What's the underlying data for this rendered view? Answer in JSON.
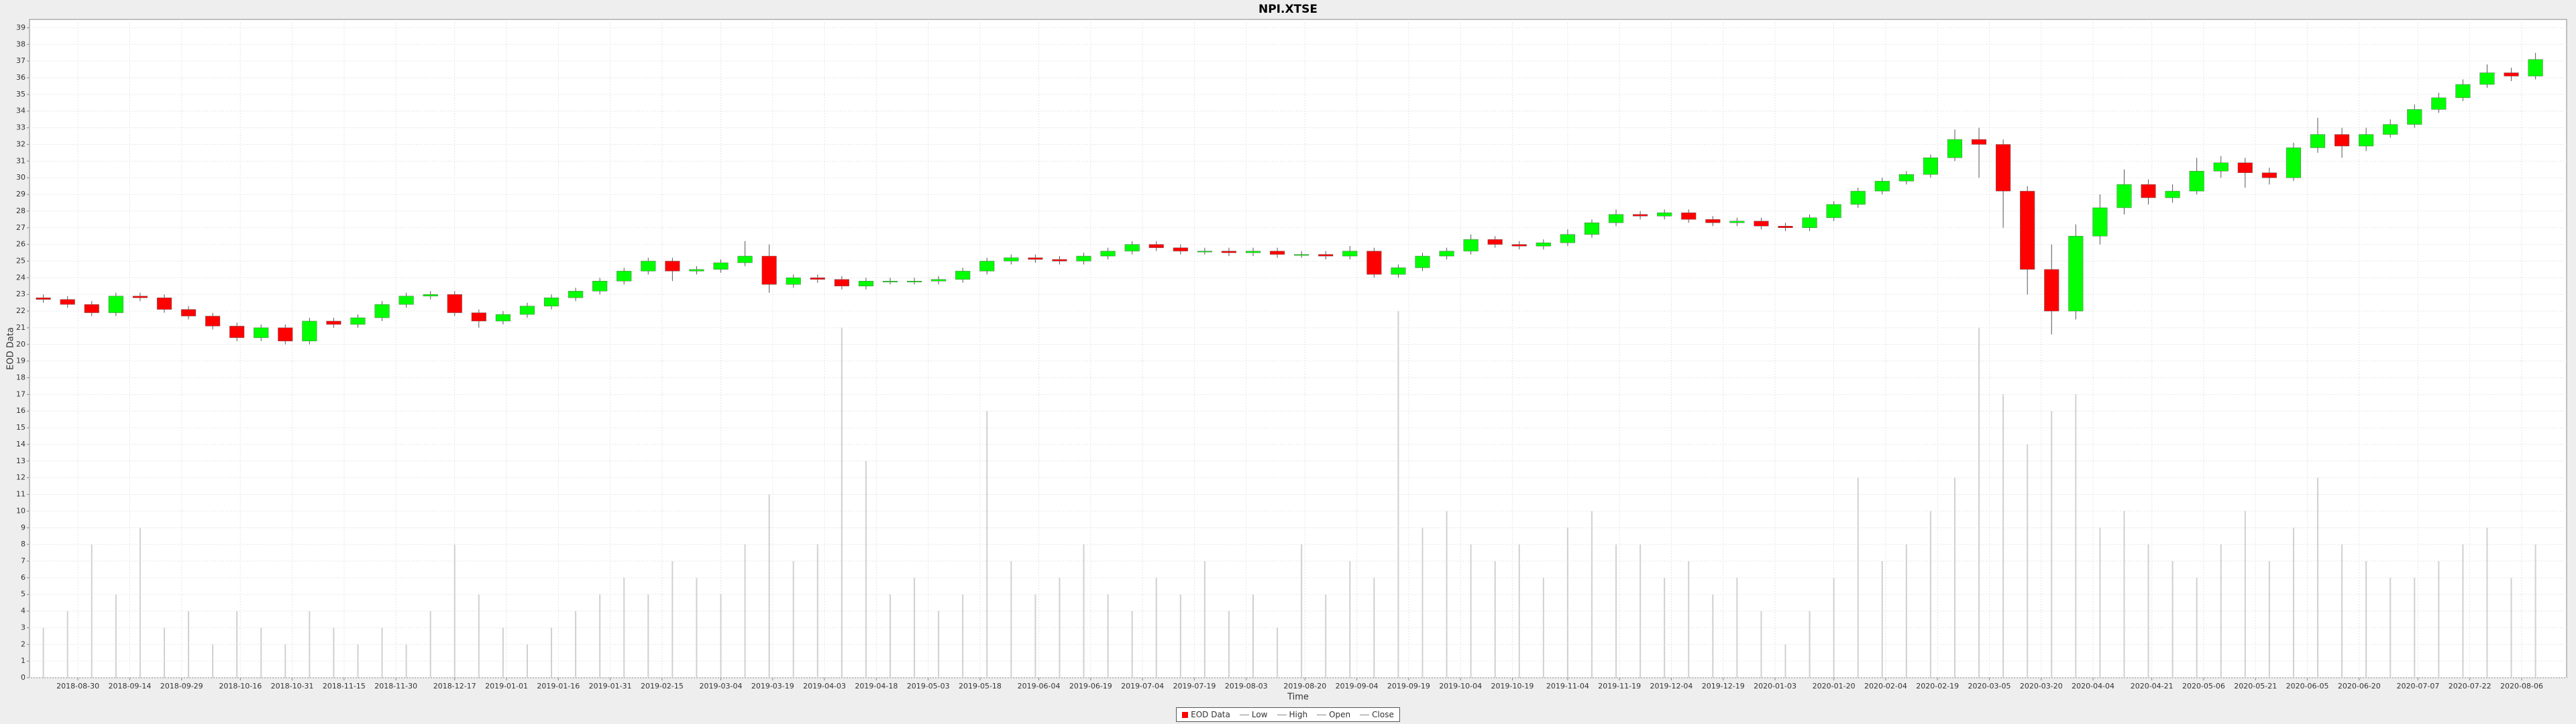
{
  "chart_data": {
    "type": "candlestick",
    "title": "NPI.XTSE",
    "x_label": "Time",
    "y_label": "EOD Data",
    "legend": [
      "EOD Data",
      "Low",
      "High",
      "Open",
      "Close"
    ],
    "legend_position": "bottom",
    "up_color": "#00ff00",
    "down_color": "#ff0000",
    "volume_color": "#d0d0d0",
    "grid": true,
    "xlim": [
      "2018-08-16",
      "2020-08-19"
    ],
    "xticks": [
      "2018-08-30",
      "2018-09-14",
      "2018-09-29",
      "2018-10-16",
      "2018-10-31",
      "2018-11-15",
      "2018-11-30",
      "2018-12-17",
      "2019-01-01",
      "2019-01-16",
      "2019-01-31",
      "2019-02-15",
      "2019-03-04",
      "2019-03-19",
      "2019-04-03",
      "2019-04-18",
      "2019-05-03",
      "2019-05-18",
      "2019-06-04",
      "2019-06-19",
      "2019-07-04",
      "2019-07-19",
      "2019-08-03",
      "2019-08-20",
      "2019-09-04",
      "2019-09-19",
      "2019-10-04",
      "2019-10-19",
      "2019-11-04",
      "2019-11-19",
      "2019-12-04",
      "2019-12-19",
      "2020-01-03",
      "2020-01-20",
      "2020-02-04",
      "2020-02-19",
      "2020-03-05",
      "2020-03-20",
      "2020-04-04",
      "2020-04-21",
      "2020-05-06",
      "2020-05-21",
      "2020-06-05",
      "2020-06-20",
      "2020-07-07",
      "2020-07-22",
      "2020-08-06"
    ],
    "ylim": [
      0,
      39.5
    ],
    "yticks": [
      0,
      1,
      2,
      3,
      4,
      5,
      6,
      7,
      8,
      9,
      10,
      11,
      12,
      13,
      14,
      15,
      16,
      17,
      18,
      19,
      20,
      21,
      22,
      23,
      24,
      25,
      26,
      27,
      28,
      29,
      30,
      31,
      32,
      33,
      34,
      35,
      36,
      37,
      38,
      39
    ],
    "x": [
      "2018-08-20",
      "2018-08-27",
      "2018-09-03",
      "2018-09-10",
      "2018-09-17",
      "2018-09-24",
      "2018-10-01",
      "2018-10-08",
      "2018-10-15",
      "2018-10-22",
      "2018-10-29",
      "2018-11-05",
      "2018-11-12",
      "2018-11-19",
      "2018-11-26",
      "2018-12-03",
      "2018-12-10",
      "2018-12-17",
      "2018-12-24",
      "2018-12-31",
      "2019-01-07",
      "2019-01-14",
      "2019-01-21",
      "2019-01-28",
      "2019-02-04",
      "2019-02-11",
      "2019-02-18",
      "2019-02-25",
      "2019-03-04",
      "2019-03-11",
      "2019-03-18",
      "2019-03-25",
      "2019-04-01",
      "2019-04-08",
      "2019-04-15",
      "2019-04-22",
      "2019-04-29",
      "2019-05-06",
      "2019-05-13",
      "2019-05-20",
      "2019-05-27",
      "2019-06-03",
      "2019-06-10",
      "2019-06-17",
      "2019-06-24",
      "2019-07-01",
      "2019-07-08",
      "2019-07-15",
      "2019-07-22",
      "2019-07-29",
      "2019-08-05",
      "2019-08-12",
      "2019-08-19",
      "2019-08-26",
      "2019-09-02",
      "2019-09-09",
      "2019-09-16",
      "2019-09-23",
      "2019-09-30",
      "2019-10-07",
      "2019-10-14",
      "2019-10-21",
      "2019-10-28",
      "2019-11-04",
      "2019-11-11",
      "2019-11-18",
      "2019-11-25",
      "2019-12-02",
      "2019-12-09",
      "2019-12-16",
      "2019-12-23",
      "2019-12-30",
      "2020-01-06",
      "2020-01-13",
      "2020-01-20",
      "2020-01-27",
      "2020-02-03",
      "2020-02-10",
      "2020-02-17",
      "2020-02-24",
      "2020-03-02",
      "2020-03-09",
      "2020-03-16",
      "2020-03-23",
      "2020-03-30",
      "2020-04-06",
      "2020-04-13",
      "2020-04-20",
      "2020-04-27",
      "2020-05-04",
      "2020-05-11",
      "2020-05-18",
      "2020-05-25",
      "2020-06-01",
      "2020-06-08",
      "2020-06-15",
      "2020-06-22",
      "2020-06-29",
      "2020-07-06",
      "2020-07-13",
      "2020-07-20",
      "2020-07-27",
      "2020-08-03",
      "2020-08-10"
    ],
    "open": [
      22.8,
      22.7,
      22.4,
      21.9,
      22.9,
      22.8,
      22.1,
      21.7,
      21.1,
      20.4,
      21.0,
      20.2,
      21.4,
      21.2,
      21.6,
      22.4,
      22.9,
      23.0,
      21.9,
      21.4,
      21.8,
      22.3,
      22.8,
      23.2,
      23.8,
      24.4,
      25.0,
      24.4,
      24.5,
      24.9,
      25.3,
      23.6,
      24.0,
      23.9,
      23.5,
      23.8,
      23.8,
      23.8,
      23.9,
      24.4,
      25.0,
      25.2,
      25.1,
      25.0,
      25.3,
      25.6,
      26.0,
      25.8,
      25.6,
      25.6,
      25.5,
      25.6,
      25.4,
      25.4,
      25.3,
      25.6,
      24.2,
      24.6,
      25.3,
      25.6,
      26.3,
      26.0,
      25.9,
      26.1,
      26.6,
      27.3,
      27.8,
      27.7,
      27.9,
      27.5,
      27.3,
      27.4,
      27.1,
      27.0,
      27.6,
      28.4,
      29.2,
      29.8,
      30.2,
      31.2,
      32.3,
      32.0,
      29.2,
      24.5,
      22.0,
      26.5,
      28.2,
      29.6,
      28.8,
      29.2,
      30.4,
      30.9,
      30.3,
      30.0,
      31.8,
      32.6,
      31.9,
      32.6,
      33.2,
      34.1,
      34.8,
      35.6,
      36.3,
      36.1
    ],
    "high": [
      23.0,
      22.9,
      22.6,
      23.1,
      23.1,
      23.0,
      22.3,
      21.9,
      21.3,
      21.2,
      21.2,
      21.6,
      21.6,
      21.8,
      22.6,
      23.1,
      23.2,
      23.2,
      22.1,
      22.0,
      22.5,
      23.0,
      23.4,
      24.0,
      24.6,
      25.2,
      25.2,
      24.7,
      25.1,
      26.2,
      26.0,
      24.2,
      24.2,
      24.1,
      24.0,
      24.0,
      24.0,
      24.1,
      24.6,
      25.2,
      25.4,
      25.4,
      25.3,
      25.5,
      25.8,
      26.2,
      26.2,
      26.0,
      25.8,
      25.8,
      25.8,
      25.8,
      25.6,
      25.6,
      25.9,
      25.8,
      24.8,
      25.5,
      25.8,
      26.6,
      26.5,
      26.2,
      26.3,
      26.9,
      27.5,
      28.1,
      28.0,
      28.1,
      28.1,
      27.7,
      27.6,
      27.6,
      27.3,
      27.8,
      28.6,
      29.4,
      30.0,
      30.4,
      31.4,
      32.9,
      33.0,
      32.3,
      29.5,
      26.0,
      27.2,
      29.0,
      30.5,
      29.9,
      29.6,
      31.2,
      31.3,
      31.2,
      30.6,
      32.1,
      33.6,
      33.0,
      33.0,
      33.5,
      34.4,
      35.1,
      35.9,
      36.8,
      36.6,
      37.5
    ],
    "low": [
      22.5,
      22.2,
      21.7,
      21.7,
      22.6,
      21.9,
      21.5,
      20.9,
      20.2,
      20.2,
      20.0,
      20.0,
      21.0,
      21.0,
      21.4,
      22.2,
      22.7,
      21.7,
      21.0,
      21.2,
      21.6,
      22.1,
      22.6,
      23.0,
      23.6,
      24.2,
      23.8,
      24.2,
      24.3,
      24.7,
      23.1,
      23.4,
      23.7,
      23.3,
      23.3,
      23.6,
      23.6,
      23.6,
      23.7,
      24.2,
      24.8,
      24.9,
      24.8,
      24.8,
      25.1,
      25.4,
      25.6,
      25.4,
      25.4,
      25.3,
      25.3,
      25.2,
      25.2,
      25.1,
      25.1,
      24.0,
      24.0,
      24.4,
      25.1,
      25.4,
      25.8,
      25.7,
      25.7,
      25.9,
      26.4,
      27.1,
      27.5,
      27.5,
      27.3,
      27.1,
      27.1,
      26.9,
      26.8,
      26.8,
      27.4,
      28.2,
      29.0,
      29.6,
      30.0,
      31.0,
      30.0,
      27.0,
      23.0,
      20.6,
      21.5,
      26.0,
      27.8,
      28.4,
      28.5,
      29.0,
      30.0,
      29.4,
      29.6,
      29.8,
      31.5,
      31.2,
      31.6,
      32.4,
      33.0,
      33.9,
      34.6,
      35.4,
      35.8,
      35.9
    ],
    "close": [
      22.7,
      22.4,
      21.9,
      22.9,
      22.8,
      22.1,
      21.7,
      21.1,
      20.4,
      21.0,
      20.2,
      21.4,
      21.2,
      21.6,
      22.4,
      22.9,
      23.0,
      21.9,
      21.4,
      21.8,
      22.3,
      22.8,
      23.2,
      23.8,
      24.4,
      25.0,
      24.4,
      24.5,
      24.9,
      25.3,
      23.6,
      24.0,
      23.9,
      23.5,
      23.8,
      23.8,
      23.8,
      23.9,
      24.4,
      25.0,
      25.2,
      25.1,
      25.0,
      25.3,
      25.6,
      26.0,
      25.8,
      25.6,
      25.6,
      25.5,
      25.6,
      25.4,
      25.4,
      25.3,
      25.6,
      24.2,
      24.6,
      25.3,
      25.6,
      26.3,
      26.0,
      25.9,
      26.1,
      26.6,
      27.3,
      27.8,
      27.7,
      27.9,
      27.5,
      27.3,
      27.4,
      27.1,
      27.0,
      27.6,
      28.4,
      29.2,
      29.8,
      30.2,
      31.2,
      32.3,
      32.0,
      29.2,
      24.5,
      22.0,
      26.5,
      28.2,
      29.6,
      28.8,
      29.2,
      30.4,
      30.9,
      30.3,
      30.0,
      31.8,
      32.6,
      31.9,
      32.6,
      33.2,
      34.1,
      34.8,
      35.6,
      36.3,
      36.1,
      37.1
    ],
    "volume": [
      3,
      4,
      8,
      5,
      9,
      3,
      4,
      2,
      4,
      3,
      2,
      4,
      3,
      2,
      3,
      2,
      4,
      8,
      5,
      3,
      2,
      3,
      4,
      5,
      6,
      5,
      7,
      6,
      5,
      8,
      11,
      7,
      8,
      21,
      13,
      5,
      6,
      4,
      5,
      16,
      7,
      5,
      6,
      8,
      5,
      4,
      6,
      5,
      7,
      4,
      5,
      3,
      8,
      5,
      7,
      6,
      22,
      9,
      10,
      8,
      7,
      8,
      6,
      9,
      10,
      8,
      8,
      6,
      7,
      5,
      6,
      4,
      2,
      4,
      6,
      12,
      7,
      8,
      10,
      12,
      21,
      17,
      14,
      16,
      17,
      9,
      10,
      8,
      7,
      6,
      8,
      10,
      7,
      9,
      12,
      8,
      7,
      6,
      6,
      7,
      8,
      9,
      6,
      8
    ]
  }
}
